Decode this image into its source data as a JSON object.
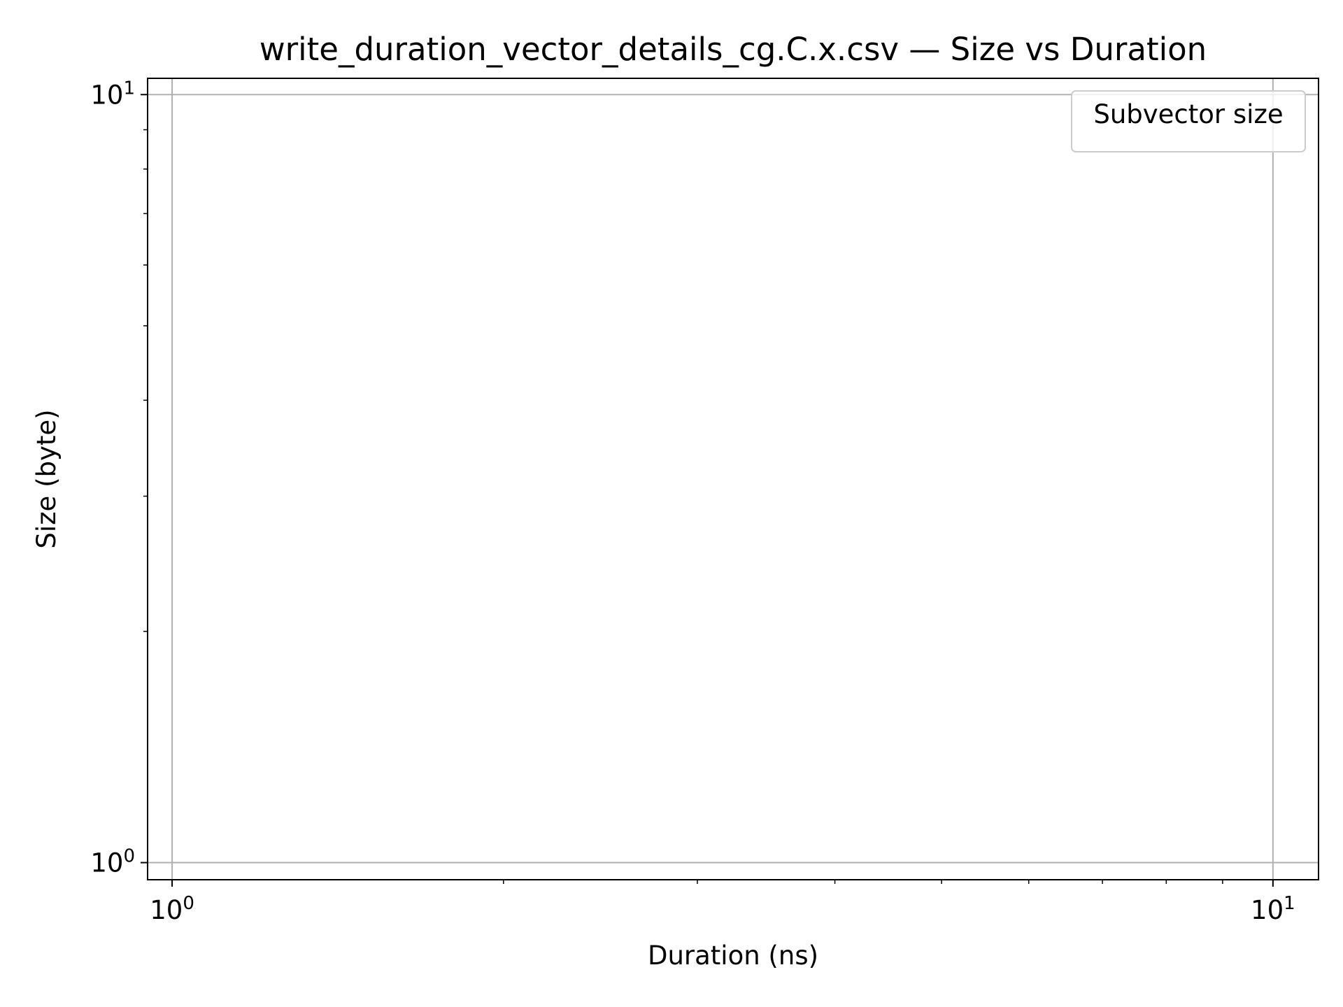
{
  "chart_data": {
    "type": "scatter",
    "title": "write_duration_vector_details_cg.C.x.csv — Size vs Duration",
    "xlabel": "Duration (ns)",
    "ylabel": "Size (byte)",
    "xscale": "log",
    "yscale": "log",
    "xlim": [
      0.95,
      11.0
    ],
    "ylim": [
      0.95,
      10.5
    ],
    "x_ticks": [
      {
        "base": "10",
        "exp": "0",
        "value": 1
      },
      {
        "base": "10",
        "exp": "1",
        "value": 10
      }
    ],
    "y_ticks": [
      {
        "base": "10",
        "exp": "0",
        "value": 1
      },
      {
        "base": "10",
        "exp": "1",
        "value": 10
      }
    ],
    "grid": true,
    "legend": {
      "title": "Subvector size",
      "position": "top-right",
      "entries": []
    },
    "series": []
  },
  "colors": {
    "grid": "#b0b0b0",
    "axes": "#000000",
    "legend_border": "#cccccc",
    "background": "#ffffff"
  }
}
